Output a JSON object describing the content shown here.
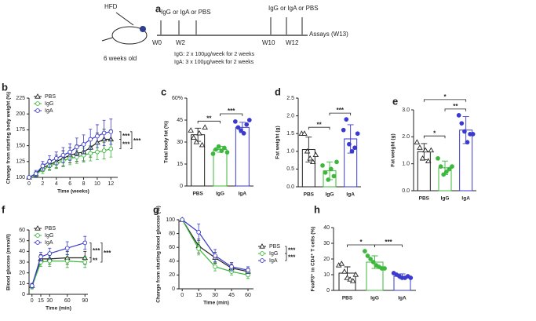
{
  "panel_a": {
    "letter": "a",
    "hfd": "HFD",
    "treat1": "IgG or IgA or PBS",
    "treat2": "IgG or IgA or PBS",
    "weeks": [
      "W0",
      "W2",
      "W10",
      "W12"
    ],
    "assays": "Assays (W13)",
    "age": "6 weeks old",
    "igg_dose": "IgG: 2 x 100µg/week for 2 weeks",
    "iga_dose": "IgA: 3 x 100µg/week for 2 weeks"
  },
  "chart_data": [
    {
      "type": "line",
      "panel": "b",
      "xlabel": "Time (weeks)",
      "ylabel": "Change from starting body weight (%)",
      "x": [
        0,
        1,
        2,
        3,
        4,
        5,
        6,
        7,
        8,
        9,
        10,
        11,
        12
      ],
      "xlim": [
        0,
        13
      ],
      "xticks": [
        0,
        2,
        4,
        6,
        8,
        10,
        12
      ],
      "ylim": [
        100,
        225
      ],
      "yticks": [
        100,
        125,
        150,
        175,
        200,
        225
      ],
      "legend": "upper left",
      "series": [
        {
          "name": "PBS",
          "color": "#222222",
          "marker": "triangle",
          "values": [
            100,
            105,
            115,
            120,
            125,
            130,
            135,
            138,
            140,
            147,
            155,
            160,
            160
          ],
          "errors": [
            2,
            4,
            6,
            8,
            10,
            12,
            12,
            13,
            14,
            15,
            15,
            16,
            15
          ]
        },
        {
          "name": "IgG",
          "color": "#3cb83c",
          "marker": "circle",
          "values": [
            100,
            105,
            112,
            118,
            122,
            126,
            130,
            132,
            135,
            138,
            140,
            142,
            145
          ],
          "errors": [
            2,
            4,
            6,
            7,
            8,
            9,
            10,
            10,
            11,
            12,
            12,
            13,
            13
          ]
        },
        {
          "name": "IgA",
          "color": "#3a3acf",
          "marker": "circle",
          "values": [
            100,
            106,
            118,
            125,
            130,
            135,
            140,
            148,
            152,
            160,
            165,
            170,
            172
          ],
          "errors": [
            2,
            5,
            7,
            9,
            10,
            12,
            13,
            14,
            15,
            16,
            18,
            20,
            20
          ]
        }
      ],
      "significance": [
        {
          "pair": [
            "IgA",
            "PBS"
          ],
          "label": "***"
        },
        {
          "pair": [
            "PBS",
            "IgG"
          ],
          "label": "***"
        },
        {
          "pair": [
            "IgA",
            "IgG"
          ],
          "label": "***"
        }
      ]
    },
    {
      "type": "bar",
      "panel": "c",
      "ylabel": "Total body fat (%)",
      "categories": [
        "PBS",
        "IgG",
        "IgA"
      ],
      "colors": [
        "#222222",
        "#3cb83c",
        "#3a3acf"
      ],
      "markers": [
        "triangle",
        "circle",
        "circle"
      ],
      "values": [
        35,
        25,
        40
      ],
      "errors": [
        4.5,
        2,
        3.5
      ],
      "points": [
        [
          38,
          33,
          30,
          36,
          28,
          40
        ],
        [
          22,
          25,
          27,
          24,
          26,
          23
        ],
        [
          44,
          40,
          38,
          36,
          42,
          45
        ]
      ],
      "ylim": [
        0,
        60
      ],
      "yticks": [
        0,
        15,
        30,
        45,
        {
          "value": 60,
          "label": "60%"
        }
      ],
      "significance": [
        {
          "pair": [
            "PBS",
            "IgG"
          ],
          "label": "**"
        },
        {
          "pair": [
            "IgG",
            "IgA"
          ],
          "label": "***"
        }
      ]
    },
    {
      "type": "bar",
      "panel": "d",
      "ylabel": "Fat weight (g)",
      "categories": [
        "PBS",
        "IgG",
        "IgA"
      ],
      "colors": [
        "#222222",
        "#3cb83c",
        "#3a3acf"
      ],
      "markers": [
        "triangle",
        "circle",
        "circle"
      ],
      "values": [
        1.05,
        0.45,
        1.35
      ],
      "errors": [
        0.35,
        0.25,
        0.4
      ],
      "points": [
        [
          1.5,
          1.5,
          1.0,
          0.8,
          0.7,
          0.9
        ],
        [
          0.6,
          0.4,
          0.2,
          0.5,
          0.3,
          0.7
        ],
        [
          1.6,
          1.9,
          1.2,
          1.0,
          1.1,
          1.5
        ]
      ],
      "ylim": [
        0,
        2.5
      ],
      "yticks": [
        {
          "value": 0,
          "label": "0.0"
        },
        0.5,
        {
          "value": 1,
          "label": "1.0"
        },
        1.5,
        {
          "value": 2,
          "label": "2.0"
        },
        2.5
      ],
      "significance": [
        {
          "pair": [
            "PBS",
            "IgG"
          ],
          "label": "**"
        },
        {
          "pair": [
            "IgG",
            "IgA"
          ],
          "label": "***"
        }
      ]
    },
    {
      "type": "bar",
      "panel": "e",
      "ylabel": "Fat weight (g)",
      "categories": [
        "PBS",
        "IgG",
        "IgA"
      ],
      "colors": [
        "#222222",
        "#3cb83c",
        "#3a3acf"
      ],
      "markers": [
        "triangle",
        "circle",
        "circle"
      ],
      "values": [
        1.45,
        0.85,
        2.25
      ],
      "errors": [
        0.3,
        0.25,
        0.5
      ],
      "points": [
        [
          1.8,
          1.6,
          1.2,
          1.5,
          1.1,
          1.5
        ],
        [
          1.2,
          0.9,
          0.6,
          0.7,
          0.8,
          0.9
        ],
        [
          2.8,
          2.5,
          2.2,
          1.8,
          2.1,
          2.1
        ]
      ],
      "ylim": [
        0,
        3
      ],
      "yticks": [
        {
          "value": 0,
          "label": "0.0"
        },
        {
          "value": 1,
          "label": "1.0"
        },
        {
          "value": 2,
          "label": "2.0"
        },
        {
          "value": 3,
          "label": "3.0"
        }
      ],
      "significance": [
        {
          "pair": [
            "PBS",
            "IgG"
          ],
          "label": "*"
        },
        {
          "pair": [
            "IgG",
            "IgA"
          ],
          "label": "**"
        },
        {
          "pair": [
            "PBS",
            "IgA"
          ],
          "label": "*"
        }
      ]
    },
    {
      "type": "line",
      "panel": "f",
      "xlabel": "Time (min)",
      "ylabel": "Blood glucose (mmol/l)",
      "x": [
        0,
        15,
        30,
        60,
        90
      ],
      "xlim": [
        -5,
        95
      ],
      "xticks": [
        0,
        15,
        30,
        60,
        90
      ],
      "ylim": [
        0,
        60
      ],
      "yticks": [
        0,
        10,
        20,
        30,
        40,
        50,
        60
      ],
      "legend": "upper left",
      "series": [
        {
          "name": "PBS",
          "color": "#222222",
          "marker": "triangle",
          "values": [
            8,
            33,
            33,
            34,
            34
          ],
          "errors": [
            2,
            4,
            5,
            6,
            6
          ]
        },
        {
          "name": "IgG",
          "color": "#3cb83c",
          "marker": "circle",
          "values": [
            7,
            30,
            31,
            31,
            30
          ],
          "errors": [
            2,
            4,
            5,
            6,
            5
          ]
        },
        {
          "name": "IgA",
          "color": "#3a3acf",
          "marker": "circle",
          "values": [
            8,
            35,
            38,
            43,
            48
          ],
          "errors": [
            2,
            4,
            5,
            6,
            6
          ]
        }
      ],
      "significance": [
        {
          "pair": [
            "IgA",
            "PBS"
          ],
          "label": "***"
        },
        {
          "pair": [
            "PBS",
            "IgG"
          ],
          "label": "**"
        },
        {
          "pair": [
            "IgA",
            "IgG"
          ],
          "label": "***"
        }
      ]
    },
    {
      "type": "line",
      "panel": "g",
      "xlabel": "Time (min)",
      "ylabel": "Change from starting blood glucose (%)",
      "x": [
        0,
        15,
        30,
        45,
        60
      ],
      "xlim": [
        -3,
        65
      ],
      "xticks": [
        0,
        15,
        30,
        45,
        60
      ],
      "ylim": [
        0,
        100
      ],
      "yticks": [
        0,
        20,
        40,
        60,
        80,
        100
      ],
      "legend": "center right",
      "series": [
        {
          "name": "PBS",
          "color": "#222222",
          "marker": "triangle",
          "values": [
            100,
            62,
            45,
            30,
            25
          ],
          "errors": [
            0,
            10,
            8,
            6,
            5
          ]
        },
        {
          "name": "IgG",
          "color": "#3cb83c",
          "marker": "circle",
          "values": [
            100,
            58,
            32,
            25,
            20
          ],
          "errors": [
            0,
            9,
            6,
            5,
            5
          ]
        },
        {
          "name": "IgA",
          "color": "#3a3acf",
          "marker": "circle",
          "values": [
            100,
            82,
            48,
            32,
            27
          ],
          "errors": [
            0,
            12,
            9,
            6,
            5
          ]
        }
      ],
      "significance": [
        {
          "pair": [
            "PBS",
            "IgG"
          ],
          "label": "***"
        },
        {
          "pair": [
            "IgG",
            "IgA"
          ],
          "label": "***"
        }
      ]
    },
    {
      "type": "bar",
      "panel": "h",
      "ylabel": "FoxP3⁺ in CD4⁺ T cells (%)",
      "categories": [
        "PBS",
        "IgG",
        "IgA"
      ],
      "colors": [
        "#222222",
        "#3cb83c",
        "#3a3acf"
      ],
      "markers": [
        "triangle",
        "circle",
        "circle"
      ],
      "values": [
        11,
        18,
        9
      ],
      "errors": [
        4,
        4,
        1.5
      ],
      "points": [
        [
          16,
          17,
          12,
          8,
          7,
          6,
          10
        ],
        [
          25,
          22,
          20,
          18,
          16,
          15,
          14,
          14
        ],
        [
          11,
          10,
          9,
          8,
          8,
          9,
          8
        ]
      ],
      "ylim": [
        0,
        40
      ],
      "yticks": [
        0,
        10,
        20,
        30,
        40
      ],
      "significance": [
        {
          "pair": [
            "PBS",
            "IgG"
          ],
          "label": "*"
        },
        {
          "pair": [
            "IgG",
            "IgA"
          ],
          "label": "***"
        }
      ]
    }
  ]
}
